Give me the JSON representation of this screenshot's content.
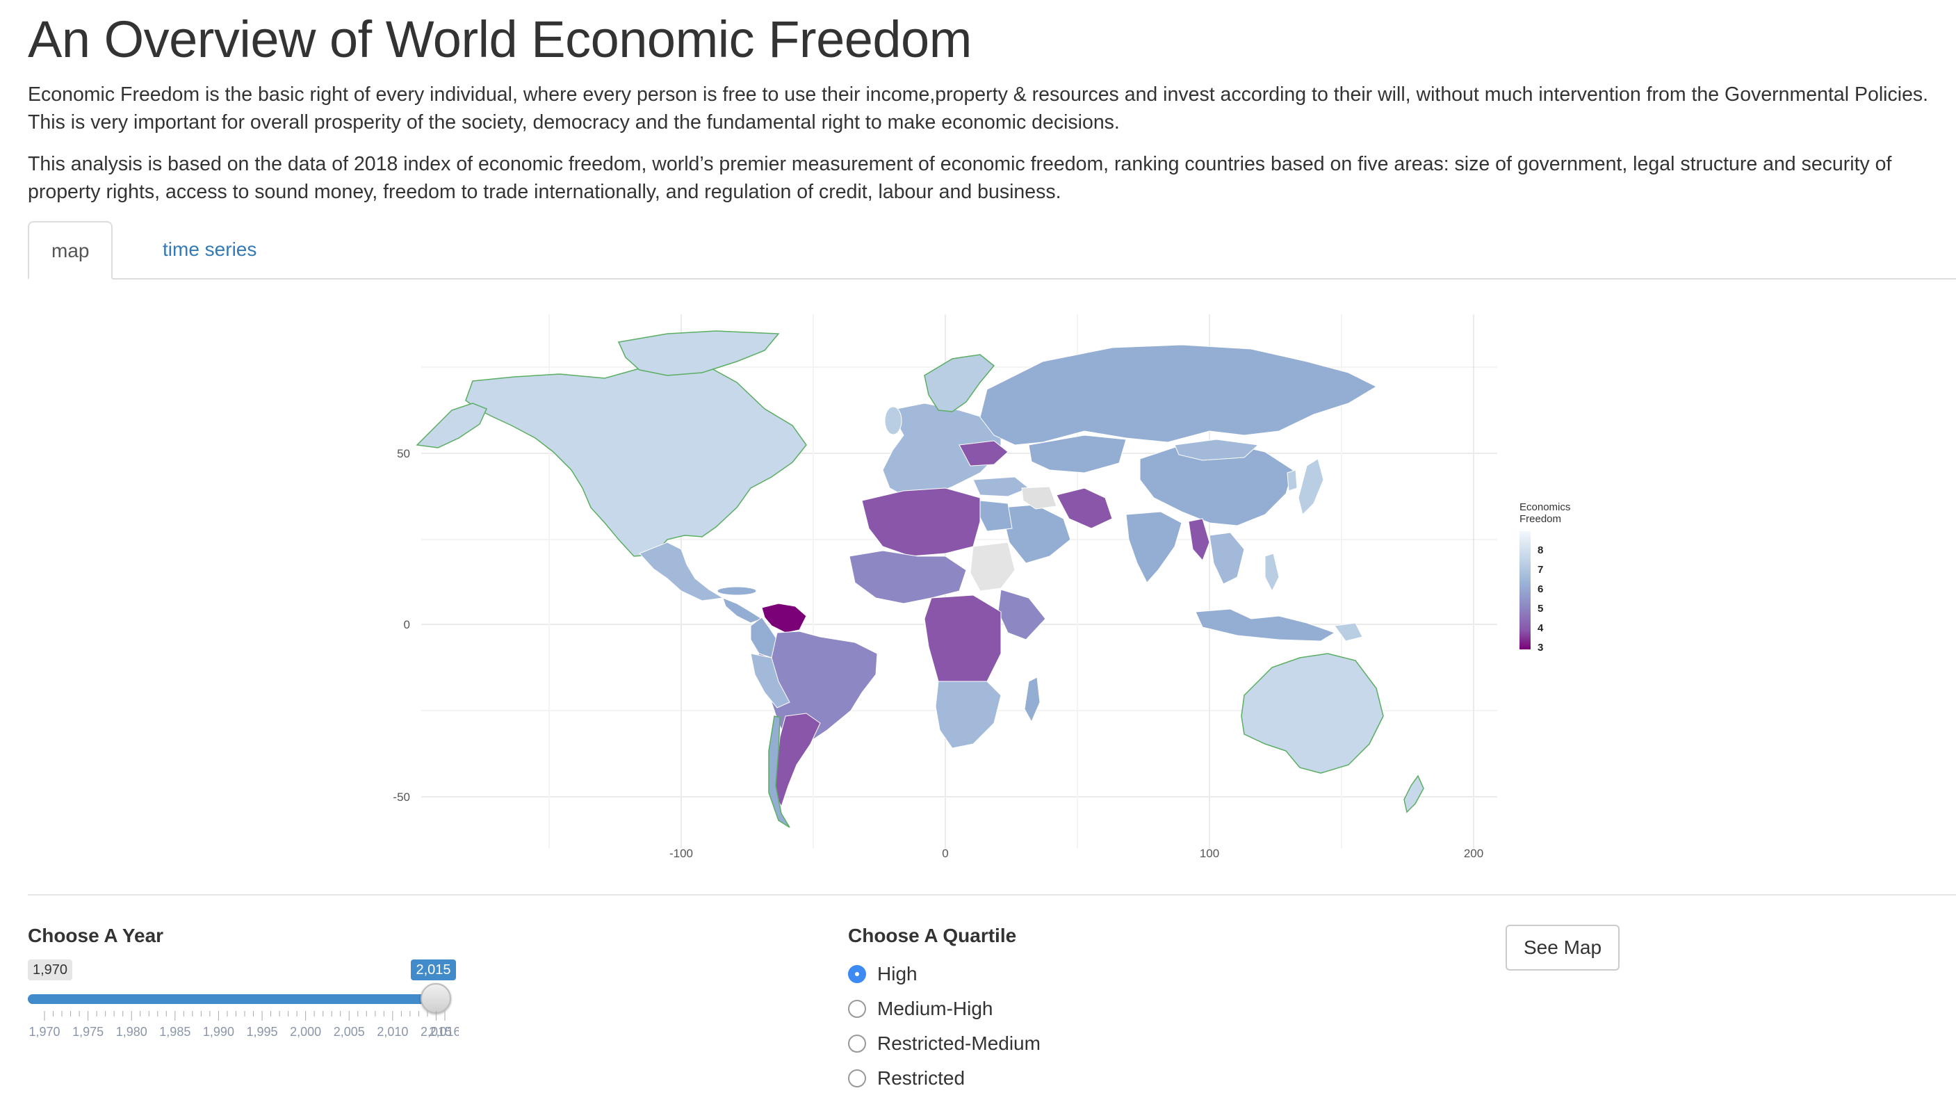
{
  "header": {
    "title": "An Overview of World Economic Freedom",
    "paragraph1": "Economic Freedom is the basic right of every individual, where every person is free to use their income,property & resources and invest according to their will, without much intervention from the Governmental Policies. This is very important for overall prosperity of the society, democracy and the fundamental right to make economic decisions.",
    "paragraph2": "This analysis is based on the data of 2018 index of economic freedom, world’s premier measurement of economic freedom, ranking countries based on five areas: size of government, legal structure and security of property rights, access to sound money, freedom to trade internationally, and regulation of credit, labour and business."
  },
  "tabs": [
    {
      "label": "map",
      "active": true
    },
    {
      "label": "time series",
      "active": false
    }
  ],
  "map": {
    "x_ticks": [
      "-100",
      "0",
      "100",
      "200"
    ],
    "y_ticks": [
      "50",
      "0",
      "-50"
    ],
    "legend": {
      "title_line1": "Economics",
      "title_line2": "Freedom",
      "values": [
        "8",
        "7",
        "6",
        "5",
        "4",
        "3"
      ],
      "colors": [
        "#edf3f8",
        "#b9cee3",
        "#94aed3",
        "#8d88c4",
        "#8956aa",
        "#7a0177"
      ]
    },
    "highlight_border_color": "#5aae61"
  },
  "controls": {
    "year_label": "Choose A Year",
    "year_min": "1,970",
    "year_selected": "2,015",
    "year_selected_value": 2015,
    "year_range": [
      1970,
      2016
    ],
    "year_ticks": [
      "1,970",
      "1,975",
      "1,980",
      "1,985",
      "1,990",
      "1,995",
      "2,000",
      "2,005",
      "2,010",
      "2,015",
      "2,016"
    ],
    "quartile_label": "Choose A Quartile",
    "quartiles": [
      {
        "label": "High",
        "selected": true
      },
      {
        "label": "Medium-High",
        "selected": false
      },
      {
        "label": "Restricted-Medium",
        "selected": false
      },
      {
        "label": "Restricted",
        "selected": false
      }
    ],
    "button_label": "See Map"
  }
}
